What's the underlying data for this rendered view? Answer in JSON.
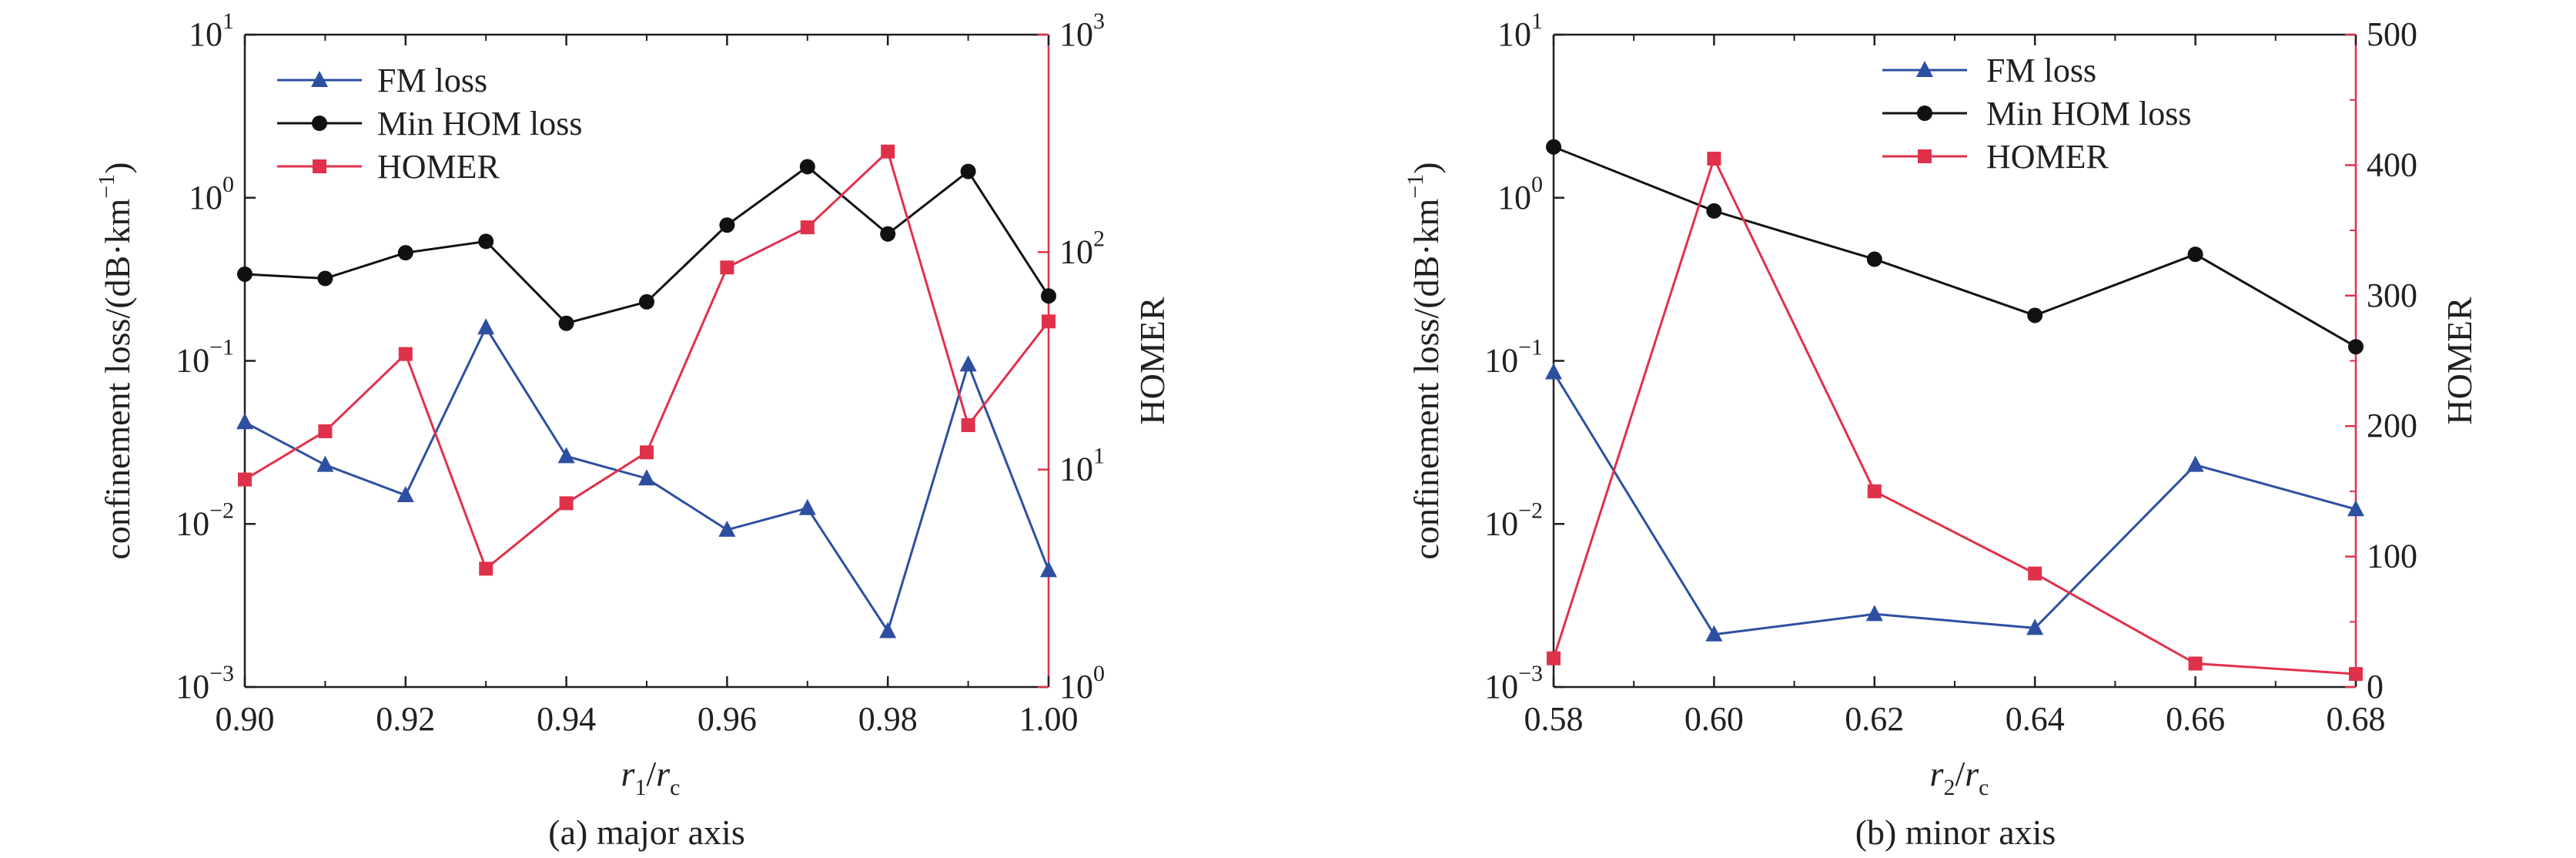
{
  "chart_data": [
    {
      "type": "line",
      "caption": "(a) major axis",
      "xlabel": {
        "main": "r",
        "sub1": "1",
        "slash": "/",
        "main2": "r",
        "sub2": "c"
      },
      "xlim": [
        0.9,
        1.0
      ],
      "xticks": [
        "0.90",
        "0.92",
        "0.94",
        "0.96",
        "0.98",
        "1.00"
      ],
      "ylabel_left": "confinement loss/(dB·km⁻¹)",
      "ylabel_left_parts": {
        "pre": "confinement loss/(dB·km",
        "sup": "−1",
        "post": ")"
      },
      "yscale_left": "log",
      "ylim_left": [
        0.001,
        10
      ],
      "yticks_left": [
        {
          "base": "10",
          "exp": "1",
          "value": 10
        },
        {
          "base": "10",
          "exp": "0",
          "value": 1
        },
        {
          "base": "10",
          "exp": "−1",
          "value": 0.1
        },
        {
          "base": "10",
          "exp": "−2",
          "value": 0.01
        },
        {
          "base": "10",
          "exp": "−3",
          "value": 0.001
        }
      ],
      "ylabel_right": "HOMER",
      "yscale_right": "log",
      "ylim_right": [
        1,
        1000
      ],
      "yticks_right": [
        {
          "base": "10",
          "exp": "3",
          "value": 1000
        },
        {
          "base": "10",
          "exp": "2",
          "value": 100
        },
        {
          "base": "10",
          "exp": "1",
          "value": 10
        },
        {
          "base": "10",
          "exp": "0",
          "value": 1
        }
      ],
      "legend_position": "top-left",
      "series": [
        {
          "name": "FM loss",
          "axis": "left",
          "color": "#2e4fa1",
          "marker": "triangle",
          "x": [
            0.9,
            0.91,
            0.92,
            0.93,
            0.94,
            0.95,
            0.96,
            0.97,
            0.98,
            0.99,
            1.0
          ],
          "y": [
            0.042,
            0.023,
            0.015,
            0.16,
            0.026,
            0.019,
            0.0092,
            0.0125,
            0.0022,
            0.095,
            0.0052
          ]
        },
        {
          "name": "Min HOM loss",
          "axis": "left",
          "color": "#111111",
          "marker": "circle",
          "x": [
            0.9,
            0.91,
            0.92,
            0.93,
            0.94,
            0.95,
            0.96,
            0.97,
            0.98,
            0.99,
            1.0
          ],
          "y": [
            0.34,
            0.32,
            0.46,
            0.54,
            0.17,
            0.23,
            0.68,
            1.55,
            0.6,
            1.45,
            0.25
          ]
        },
        {
          "name": "HOMER",
          "axis": "right",
          "color": "#e0314b",
          "marker": "square",
          "x": [
            0.9,
            0.91,
            0.92,
            0.93,
            0.94,
            0.95,
            0.96,
            0.97,
            0.98,
            0.99,
            1.0
          ],
          "y": [
            9,
            15,
            34,
            3.5,
            7,
            12,
            85,
            130,
            290,
            16,
            48
          ]
        }
      ]
    },
    {
      "type": "line",
      "caption": "(b) minor axis",
      "xlabel": {
        "main": "r",
        "sub1": "2",
        "slash": "/",
        "main2": "r",
        "sub2": "c"
      },
      "xlim": [
        0.58,
        0.68
      ],
      "xticks": [
        "0.58",
        "0.60",
        "0.62",
        "0.64",
        "0.66",
        "0.68"
      ],
      "ylabel_left": "confinement loss/(dB·km⁻¹)",
      "ylabel_left_parts": {
        "pre": "confinement loss/(dB·km",
        "sup": "−1",
        "post": ")"
      },
      "yscale_left": "log",
      "ylim_left": [
        0.001,
        10
      ],
      "yticks_left": [
        {
          "base": "10",
          "exp": "1",
          "value": 10
        },
        {
          "base": "10",
          "exp": "0",
          "value": 1
        },
        {
          "base": "10",
          "exp": "−1",
          "value": 0.1
        },
        {
          "base": "10",
          "exp": "−2",
          "value": 0.01
        },
        {
          "base": "10",
          "exp": "−3",
          "value": 0.001
        }
      ],
      "ylabel_right": "HOMER",
      "yscale_right": "linear",
      "ylim_right": [
        0,
        500
      ],
      "yticks_right": [
        {
          "label": "500",
          "value": 500
        },
        {
          "label": "400",
          "value": 400
        },
        {
          "label": "300",
          "value": 300
        },
        {
          "label": "200",
          "value": 200
        },
        {
          "label": "100",
          "value": 100
        },
        {
          "label": "0",
          "value": 0
        }
      ],
      "legend_position": "top-center",
      "series": [
        {
          "name": "FM loss",
          "axis": "left",
          "color": "#2e4fa1",
          "marker": "triangle",
          "x": [
            0.58,
            0.6,
            0.62,
            0.64,
            0.66,
            0.68
          ],
          "y": [
            0.085,
            0.0021,
            0.0028,
            0.0023,
            0.023,
            0.0123
          ]
        },
        {
          "name": "Min HOM loss",
          "axis": "left",
          "color": "#111111",
          "marker": "circle",
          "x": [
            0.58,
            0.6,
            0.62,
            0.64,
            0.66,
            0.68
          ],
          "y": [
            2.05,
            0.83,
            0.42,
            0.19,
            0.45,
            0.122
          ]
        },
        {
          "name": "HOMER",
          "axis": "right",
          "color": "#e0314b",
          "marker": "square",
          "x": [
            0.58,
            0.6,
            0.62,
            0.64,
            0.66,
            0.68
          ],
          "y": [
            22,
            405,
            150,
            87,
            18,
            10
          ]
        }
      ]
    }
  ]
}
